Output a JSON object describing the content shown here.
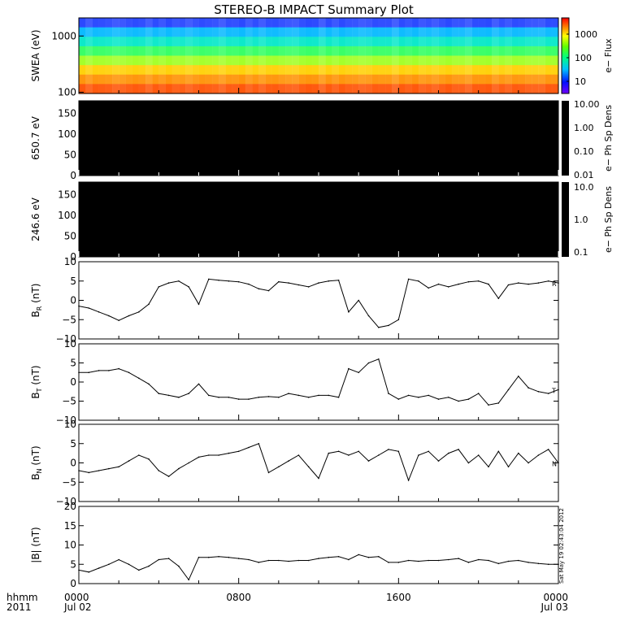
{
  "title": "STEREO-B IMPACT Summary Plot",
  "timestamp": "Sat May 19 02:43:04 2012",
  "chart_data": [
    {
      "type": "heatmap",
      "id": "swea",
      "ylabel": "SWEA (eV)",
      "yscale": "log",
      "ylim": [
        95,
        2100
      ],
      "yticks": [
        "1000",
        "100"
      ],
      "colorbar_label": "e− Flux",
      "colorbar_ticks": [
        "1000",
        "100",
        "10"
      ],
      "bands": [
        {
          "energy_ev": 1800,
          "color": "#2040ff"
        },
        {
          "energy_ev": 1300,
          "color": "#00b8ff"
        },
        {
          "energy_ev": 900,
          "color": "#00e8c8"
        },
        {
          "energy_ev": 600,
          "color": "#30ff60"
        },
        {
          "energy_ev": 400,
          "color": "#a0ff20"
        },
        {
          "energy_ev": 270,
          "color": "#ffd000"
        },
        {
          "energy_ev": 180,
          "color": "#ff9000"
        },
        {
          "energy_ev": 120,
          "color": "#ff5000"
        }
      ]
    },
    {
      "type": "heatmap",
      "id": "pad650",
      "ylabel": "650.7 eV",
      "ylim": [
        0,
        180
      ],
      "yticks": [
        "150",
        "100",
        "50",
        "0"
      ],
      "colorbar_label": "e− Ph Sp Dens",
      "colorbar_ticks": [
        "10.00",
        "1.00",
        "0.10",
        "0.01"
      ],
      "fill": "#000000"
    },
    {
      "type": "heatmap",
      "id": "pad246",
      "ylabel": "246.6 eV",
      "ylim": [
        0,
        180
      ],
      "yticks": [
        "150",
        "100",
        "50",
        "0"
      ],
      "colorbar_label": "e− Ph Sp Dens",
      "colorbar_ticks": [
        "10.0",
        "1.0",
        "0.1"
      ],
      "fill": "#000000"
    },
    {
      "type": "line",
      "id": "br",
      "ylabel_main": "B",
      "ylabel_sub": "R",
      "ylabel_unit": " (nT)",
      "ylim": [
        -10,
        10
      ],
      "yticks": [
        "10",
        "5",
        "0",
        "−5",
        "−10"
      ],
      "right_marker": "R",
      "x": [
        0,
        0.5,
        1,
        1.5,
        2,
        2.5,
        3,
        3.5,
        4,
        4.5,
        5,
        5.5,
        6,
        6.5,
        7,
        7.5,
        8,
        8.5,
        9,
        9.5,
        10,
        10.5,
        11,
        11.5,
        12,
        12.5,
        13,
        13.5,
        14,
        14.5,
        15,
        15.5,
        16,
        16.5,
        17,
        17.5,
        18,
        18.5,
        19,
        19.5,
        20,
        20.5,
        21,
        21.5,
        22,
        22.5,
        23,
        23.5,
        24
      ],
      "y": [
        -1.5,
        -2,
        -3,
        -4,
        -5.2,
        -4,
        -3,
        -1,
        3.5,
        4.5,
        5,
        3.5,
        -1,
        5.5,
        5.2,
        5,
        4.8,
        4.2,
        3,
        2.5,
        4.8,
        4.5,
        4,
        3.5,
        4.5,
        5,
        5.2,
        -3,
        0,
        -4,
        -7,
        -6.5,
        -5,
        5.5,
        5,
        3.2,
        4.2,
        3.5,
        4.2,
        4.8,
        5,
        4.2,
        0.5,
        4,
        4.5,
        4.2,
        4.5,
        5,
        4.5
      ]
    },
    {
      "type": "line",
      "id": "bt",
      "ylabel_main": "B",
      "ylabel_sub": "T",
      "ylabel_unit": " (nT)",
      "ylim": [
        -10,
        10
      ],
      "yticks": [
        "10",
        "5",
        "0",
        "−5",
        "−10"
      ],
      "right_marker": "T",
      "x": [
        0,
        0.5,
        1,
        1.5,
        2,
        2.5,
        3,
        3.5,
        4,
        4.5,
        5,
        5.5,
        6,
        6.5,
        7,
        7.5,
        8,
        8.5,
        9,
        9.5,
        10,
        10.5,
        11,
        11.5,
        12,
        12.5,
        13,
        13.5,
        14,
        14.5,
        15,
        15.5,
        16,
        16.5,
        17,
        17.5,
        18,
        18.5,
        19,
        19.5,
        20,
        20.5,
        21,
        21.5,
        22,
        22.5,
        23,
        23.5,
        24
      ],
      "y": [
        2.5,
        2.5,
        3,
        3,
        3.5,
        2.5,
        1,
        -0.5,
        -3,
        -3.5,
        -4,
        -3,
        -0.5,
        -3.5,
        -4,
        -4,
        -4.5,
        -4.5,
        -4,
        -3.8,
        -4,
        -3,
        -3.5,
        -4,
        -3.5,
        -3.5,
        -4,
        3.5,
        2.5,
        5,
        6,
        -3,
        -4.5,
        -3.5,
        -4,
        -3.5,
        -4.5,
        -4,
        -5,
        -4.5,
        -3,
        -6,
        -5.5,
        -2,
        1.5,
        -1.5,
        -2.5,
        -3,
        -2
      ]
    },
    {
      "type": "line",
      "id": "bn",
      "ylabel_main": "B",
      "ylabel_sub": "N",
      "ylabel_unit": " (nT)",
      "ylim": [
        -10,
        10
      ],
      "yticks": [
        "10",
        "5",
        "0",
        "−5",
        "−10"
      ],
      "right_marker": "N",
      "x": [
        0,
        0.5,
        1,
        1.5,
        2,
        2.5,
        3,
        3.5,
        4,
        4.5,
        5,
        5.5,
        6,
        6.5,
        7,
        7.5,
        8,
        8.5,
        9,
        9.5,
        10,
        10.5,
        11,
        11.5,
        12,
        12.5,
        13,
        13.5,
        14,
        14.5,
        15,
        15.5,
        16,
        16.5,
        17,
        17.5,
        18,
        18.5,
        19,
        19.5,
        20,
        20.5,
        21,
        21.5,
        22,
        22.5,
        23,
        23.5,
        24
      ],
      "y": [
        -2,
        -2.5,
        -2,
        -1.5,
        -1,
        0.5,
        2,
        1,
        -2,
        -3.5,
        -1.5,
        0,
        1.5,
        2,
        2,
        2.5,
        3,
        4,
        5,
        -2.5,
        -1,
        0.5,
        2,
        -1,
        -4,
        2.5,
        3,
        2,
        3,
        0.5,
        2,
        3.5,
        3,
        -4.5,
        2,
        3,
        0.5,
        2.5,
        3.5,
        0,
        2,
        -1,
        3,
        -1,
        2.5,
        0,
        2,
        3.5,
        0
      ]
    },
    {
      "type": "line",
      "id": "bmag",
      "ylabel": "|B| (nT)",
      "ylim": [
        0,
        20
      ],
      "yticks": [
        "20",
        "15",
        "10",
        "5",
        "0"
      ],
      "x": [
        0,
        0.5,
        1,
        1.5,
        2,
        2.5,
        3,
        3.5,
        4,
        4.5,
        5,
        5.5,
        6,
        6.5,
        7,
        7.5,
        8,
        8.5,
        9,
        9.5,
        10,
        10.5,
        11,
        11.5,
        12,
        12.5,
        13,
        13.5,
        14,
        14.5,
        15,
        15.5,
        16,
        16.5,
        17,
        17.5,
        18,
        18.5,
        19,
        19.5,
        20,
        20.5,
        21,
        21.5,
        22,
        22.5,
        23,
        23.5,
        24
      ],
      "y": [
        3.5,
        3,
        4,
        5,
        6.2,
        5,
        3.5,
        4.5,
        6.2,
        6.5,
        4.5,
        1,
        6.8,
        6.8,
        7,
        6.8,
        6.5,
        6.2,
        5.5,
        6,
        6,
        5.8,
        6,
        6,
        6.5,
        6.8,
        7,
        6.2,
        7.5,
        6.8,
        7,
        5.5,
        5.5,
        6,
        5.8,
        6,
        6,
        6.2,
        6.5,
        5.5,
        6.2,
        6,
        5.2,
        5.8,
        6,
        5.5,
        5.2,
        5,
        5
      ]
    }
  ],
  "x_axis": {
    "range_hours": [
      0,
      24
    ],
    "ticks": [
      {
        "h": 0,
        "label": "0000",
        "date": "Jul 02"
      },
      {
        "h": 8,
        "label": "0800",
        "date": ""
      },
      {
        "h": 16,
        "label": "1600",
        "date": ""
      },
      {
        "h": 24,
        "label": "0000",
        "date": "Jul 03"
      }
    ],
    "corner_label_top": "hhmm",
    "corner_label_bottom": "2011"
  }
}
